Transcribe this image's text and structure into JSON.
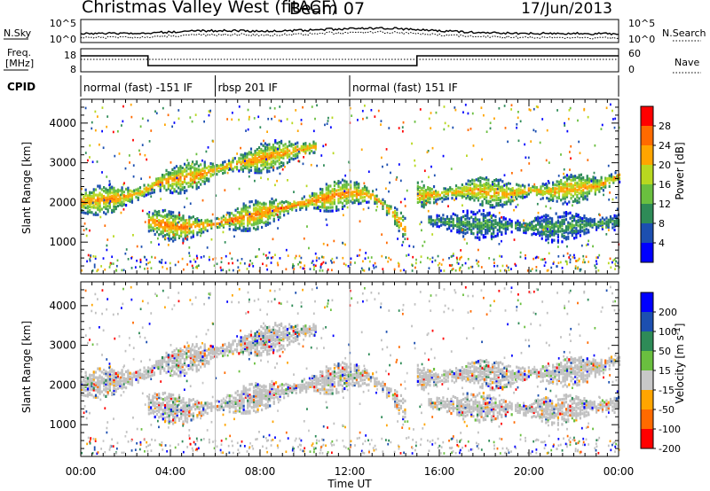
{
  "header": {
    "title": "Christmas Valley West (fitACF)",
    "beam": "Beam 07",
    "date": "17/Jun/2013"
  },
  "summary_panels": {
    "nsky_label": "N.Sky",
    "nsearch_label": "N.Search",
    "freq_label_line1": "Freq.",
    "freq_label_line2": "[MHz]",
    "nave_label": "Nave",
    "cpid_label": "CPID",
    "nsky_ticks": [
      "10^5",
      "10^0"
    ],
    "nsearch_ticks": [
      "10^5",
      "10^0"
    ],
    "freq_ticks": [
      "18",
      "8"
    ],
    "nave_ticks": [
      "60",
      "0"
    ]
  },
  "cpid_segments": [
    {
      "label": "normal (fast) -151 IF",
      "start_hour": 0,
      "end_hour": 6
    },
    {
      "label": "rbsp 201 IF",
      "start_hour": 6,
      "end_hour": 12
    },
    {
      "label": "normal (fast) 151 IF",
      "start_hour": 12,
      "end_hour": 24
    }
  ],
  "colors": {
    "power_scale": [
      "#0000ff",
      "#1c4fb0",
      "#2e8b57",
      "#6abf3f",
      "#b8d820",
      "#ffa500",
      "#ff6a00",
      "#ff0000"
    ],
    "velocity_scale": [
      "#0000ff",
      "#1c4fb0",
      "#2e8b57",
      "#6abf3f",
      "#c8c8c8",
      "#ffa500",
      "#ff6a00",
      "#ff0000"
    ],
    "ground_scatter": "#c0c0c0"
  },
  "chart_data": [
    {
      "type": "heatmap",
      "title": "",
      "xlabel": "Time UT",
      "ylabel": "Slant Range [km]",
      "x_ticks": [
        "00:00",
        "04:00",
        "08:00",
        "12:00",
        "16:00",
        "20:00",
        "00:00"
      ],
      "xlim_hours": [
        0,
        24
      ],
      "ylim": [
        200,
        4600
      ],
      "y_ticks": [
        1000,
        2000,
        3000,
        4000
      ],
      "colorbar": {
        "label": "Power [dB]",
        "ticks": [
          "4",
          "8",
          "12",
          "16",
          "20",
          "24",
          "28"
        ],
        "range": [
          0,
          32
        ]
      },
      "echo_bands": [
        {
          "name": "upper-band",
          "points": [
            [
              0,
              2050
            ],
            [
              1.5,
              2150
            ],
            [
              2.5,
              2250
            ],
            [
              3.5,
              2550
            ],
            [
              5,
              2700
            ],
            [
              6.5,
              2950
            ],
            [
              8,
              3150
            ],
            [
              9.5,
              3350
            ],
            [
              10.5,
              3450
            ]
          ],
          "level": 24
        },
        {
          "name": "lower-band",
          "points": [
            [
              3,
              1550
            ],
            [
              4.5,
              1400
            ],
            [
              6,
              1500
            ],
            [
              7.5,
              1700
            ],
            [
              9,
              1900
            ],
            [
              10.5,
              2100
            ],
            [
              12,
              2300
            ],
            [
              13,
              2200
            ],
            [
              14,
              1700
            ],
            [
              14.5,
              1300
            ]
          ],
          "level": 25
        },
        {
          "name": "evening-band",
          "points": [
            [
              15,
              2200
            ],
            [
              16,
              2250
            ],
            [
              17.5,
              2350
            ],
            [
              19,
              2250
            ],
            [
              20,
              2350
            ],
            [
              21,
              2300
            ],
            [
              22,
              2400
            ],
            [
              23,
              2450
            ],
            [
              24,
              2700
            ]
          ],
          "level": 23
        },
        {
          "name": "evening-lower",
          "points": [
            [
              15.5,
              1600
            ],
            [
              17,
              1500
            ],
            [
              19,
              1450
            ],
            [
              21,
              1400
            ],
            [
              23,
              1500
            ],
            [
              24,
              1550
            ]
          ],
          "level": 12
        }
      ]
    },
    {
      "type": "heatmap",
      "title": "",
      "xlabel": "Time UT",
      "ylabel": "Slant Range [km]",
      "x_ticks": [
        "00:00",
        "04:00",
        "08:00",
        "12:00",
        "16:00",
        "20:00",
        "00:00"
      ],
      "xlim_hours": [
        0,
        24
      ],
      "ylim": [
        200,
        4600
      ],
      "y_ticks": [
        1000,
        2000,
        3000,
        4000
      ],
      "colorbar": {
        "label": "Velocity [m s-1]",
        "ticks": [
          "200",
          "100",
          "50",
          "15",
          "-15",
          "-50",
          "-100",
          "-200"
        ],
        "range": [
          -250,
          250
        ]
      }
    }
  ]
}
